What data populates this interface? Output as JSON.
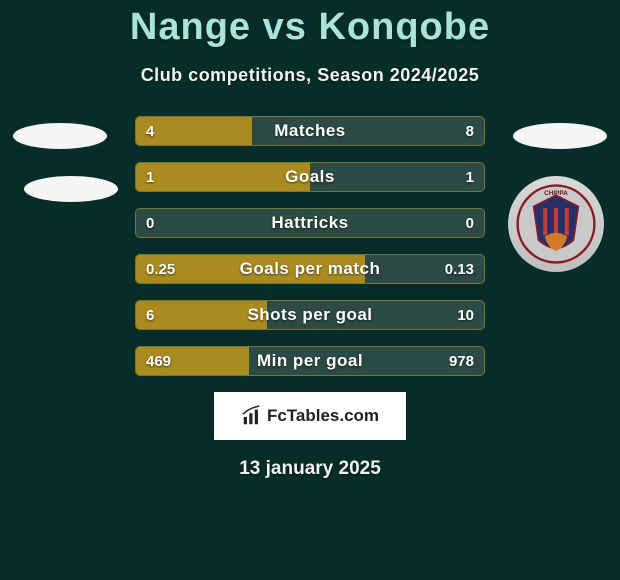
{
  "background_color": "#062d27",
  "accent_color": "#aae3d9",
  "subtitle_color": "#f2f2f2",
  "bar_fill_color": "#aa8b1f",
  "bar_empty_color": "#2c4b44",
  "title": {
    "player1": "Nange",
    "vs": "vs",
    "player2": "Konqobe"
  },
  "subtitle": "Club competitions, Season 2024/2025",
  "stats": [
    {
      "label": "Matches",
      "left_val": "4",
      "right_val": "8",
      "left_pct": 33.3,
      "right_pct": 0
    },
    {
      "label": "Goals",
      "left_val": "1",
      "right_val": "1",
      "left_pct": 50.0,
      "right_pct": 0
    },
    {
      "label": "Hattricks",
      "left_val": "0",
      "right_val": "0",
      "left_pct": 0,
      "right_pct": 0
    },
    {
      "label": "Goals per match",
      "left_val": "0.25",
      "right_val": "0.13",
      "left_pct": 65.8,
      "right_pct": 0
    },
    {
      "label": "Shots per goal",
      "left_val": "6",
      "right_val": "10",
      "left_pct": 37.5,
      "right_pct": 0
    },
    {
      "label": "Min per goal",
      "left_val": "469",
      "right_val": "978",
      "left_pct": 32.4,
      "right_pct": 0
    }
  ],
  "brand": "FcTables.com",
  "date": "13 january 2025",
  "emblem_label": "CHIPPA"
}
